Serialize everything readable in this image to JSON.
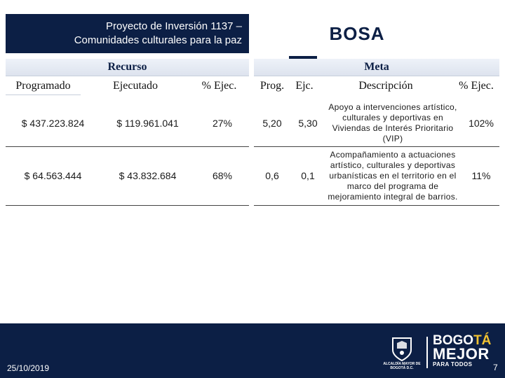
{
  "header": {
    "title_line1": "Proyecto de Inversión 1137 –",
    "title_line2": "Comunidades culturales para la paz",
    "district": "BOSA"
  },
  "sections": {
    "recurso": "Recurso",
    "meta": "Meta"
  },
  "columns": {
    "programado": "Programado",
    "ejecutado": "Ejecutado",
    "pct_ejec": "% Ejec.",
    "prog": "Prog.",
    "ejc": "Ejc.",
    "descripcion": "Descripción",
    "meta_pct_ejec": "% Ejec."
  },
  "rows": [
    {
      "programado": "$ 437.223.824",
      "ejecutado": "$ 119.961.041",
      "pct_ejec": "27%",
      "prog": "5,20",
      "ejc": "5,30",
      "descripcion": "Apoyo a intervenciones artístico, culturales y deportivas en Viviendas de Interés Prioritario (VIP)",
      "meta_pct_ejec": "102%"
    },
    {
      "programado": "$ 64.563.444",
      "ejecutado": "$ 43.832.684",
      "pct_ejec": "68%",
      "prog": "0,6",
      "ejc": "0,1",
      "descripcion": "Acompañamiento a actuaciones artístico, culturales y deportivas urbanísticas en el territorio en el marco del programa de mejoramiento integral de barrios.",
      "meta_pct_ejec": "11%"
    }
  ],
  "footer": {
    "date": "25/10/2019",
    "page": "7",
    "crest_caption": "ALCALDÍA MAYOR DE BOGOTÁ D.C.",
    "brand_line1_a": "BOGO",
    "brand_line1_b": "TÁ",
    "brand_line2": "MEJOR",
    "brand_line3_a": "PARA TODOS",
    "colors": {
      "band": "#0c1f45",
      "accent": "#f2c230"
    }
  }
}
